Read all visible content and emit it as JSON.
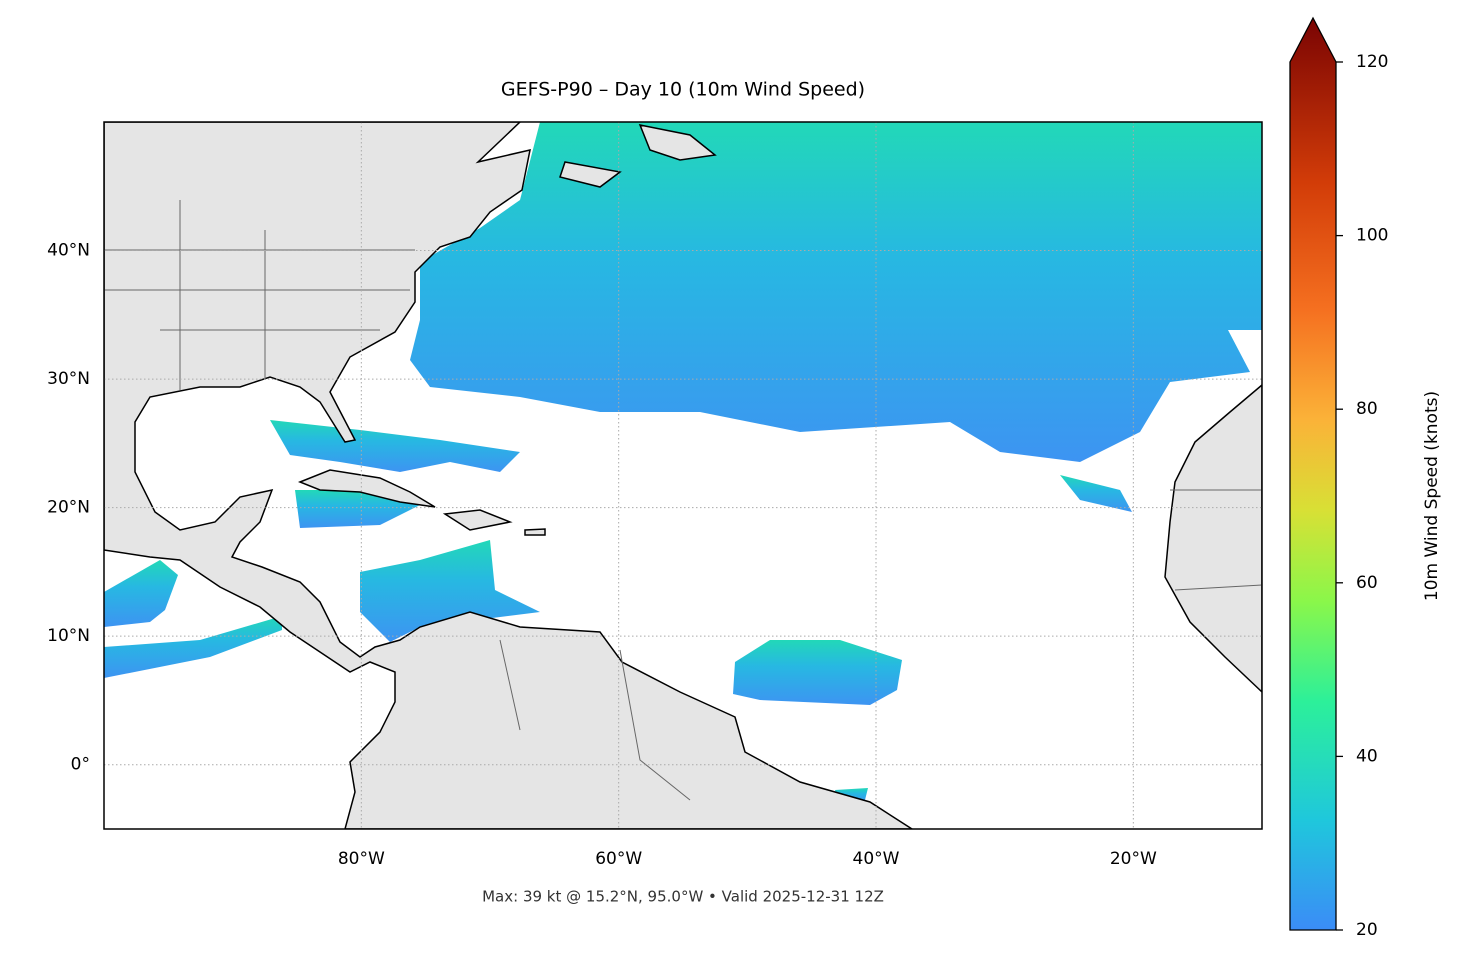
{
  "chart_data": {
    "type": "map",
    "title": "GEFS-P90 – Day 10 (10m Wind Speed)",
    "footer": "Max: 39 kt @ 15.2°N, 95.0°W • Valid 2025-12-31 12Z",
    "xlim": [
      -100,
      -10
    ],
    "ylim": [
      -5,
      50
    ],
    "xticks": [
      {
        "value": -80,
        "label": "80°W"
      },
      {
        "value": -60,
        "label": "60°W"
      },
      {
        "value": -40,
        "label": "40°W"
      },
      {
        "value": -20,
        "label": "20°W"
      }
    ],
    "yticks": [
      {
        "value": 0,
        "label": "0°"
      },
      {
        "value": 10,
        "label": "10°N"
      },
      {
        "value": 20,
        "label": "20°N"
      },
      {
        "value": 30,
        "label": "30°N"
      },
      {
        "value": 40,
        "label": "40°N"
      }
    ],
    "grid": true,
    "colorbar": {
      "label": "10m Wind Speed (knots)",
      "lim": [
        20,
        120
      ],
      "ticks": [
        20,
        40,
        60,
        80,
        100,
        120
      ]
    }
  }
}
